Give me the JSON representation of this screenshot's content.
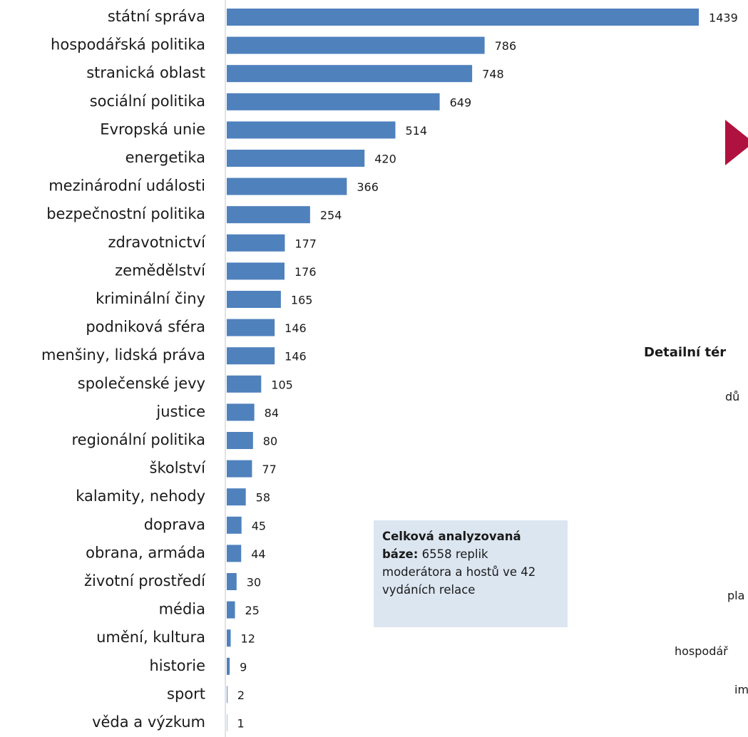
{
  "chart_data": {
    "type": "barh",
    "categories": [
      "státní správa",
      "hospodářská politika",
      "stranická oblast",
      "sociální politika",
      "Evropská unie",
      "energetika",
      "mezinárodní události",
      "bezpečnostní politika",
      "zdravotnictví",
      "zemědělství",
      "kriminální činy",
      "podniková sféra",
      "menšiny, lidská práva",
      "společenské jevy",
      "justice",
      "regionální politika",
      "školství",
      "kalamity, nehody",
      "doprava",
      "obrana, armáda",
      "životní prostředí",
      "média",
      "umění, kultura",
      "historie",
      "sport",
      "věda a výzkum"
    ],
    "values": [
      1439,
      786,
      748,
      649,
      514,
      420,
      366,
      254,
      177,
      176,
      165,
      146,
      146,
      105,
      84,
      80,
      77,
      58,
      45,
      44,
      30,
      25,
      12,
      9,
      2,
      1
    ],
    "color": "#4f81bd",
    "xlim": [
      0,
      1440
    ]
  },
  "note": {
    "bold": "Celková analyzovaná báze:",
    "text": "6558 replik moderátora a hostů ve 42 vydáních relace"
  },
  "fragments": {
    "heading": "Detailní tér",
    "f1": "dů",
    "f2": "pla",
    "f3": "hospodář",
    "f4": "im"
  }
}
